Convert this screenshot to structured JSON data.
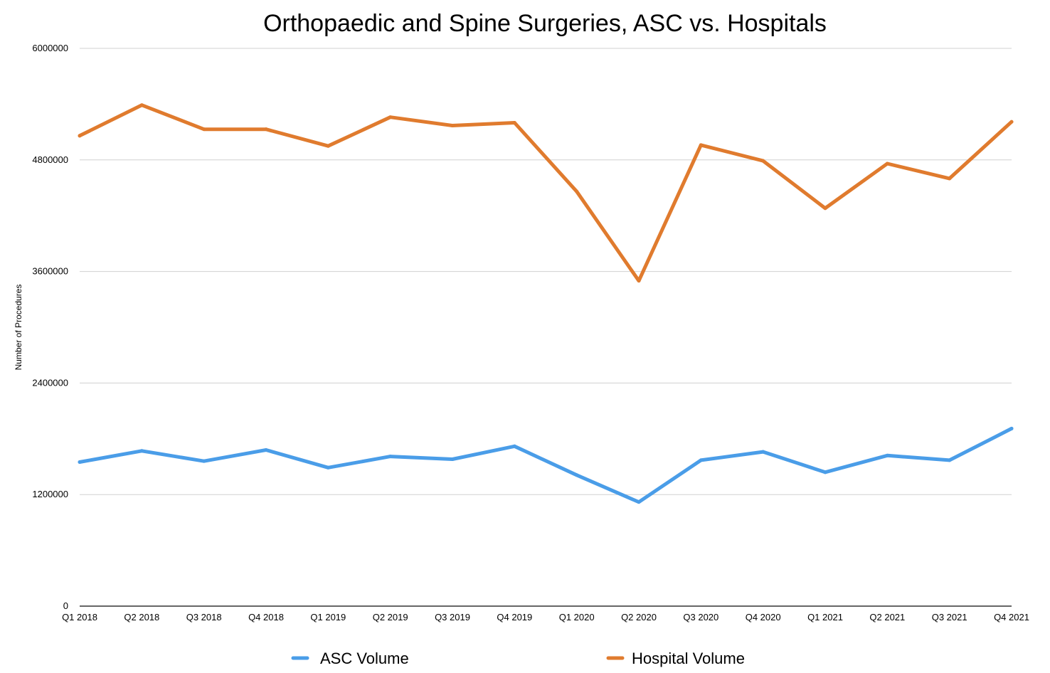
{
  "chart_data": {
    "type": "line",
    "title": "Orthopaedic and Spine Surgeries,  ASC vs. Hospitals",
    "xlabel": "",
    "ylabel": "Number of Procedures",
    "ylim": [
      0,
      6000000
    ],
    "yticks": [
      0,
      1200000,
      2400000,
      3600000,
      4800000,
      6000000
    ],
    "ytick_labels": [
      "0",
      "1200000",
      "2400000",
      "3600000",
      "4800000",
      "6000000"
    ],
    "grid": true,
    "legend_position": "bottom",
    "categories": [
      "Q1 2018",
      "Q2 2018",
      "Q3 2018",
      "Q4 2018",
      "Q1 2019",
      "Q2 2019",
      "Q3 2019",
      "Q4 2019",
      "Q1 2020",
      "Q2 2020",
      "Q3 2020",
      "Q4 2020",
      "Q1 2021",
      "Q2 2021",
      "Q3 2021",
      "Q4 2021"
    ],
    "series": [
      {
        "name": "ASC Volume",
        "color": "#4a9de8",
        "values": [
          1550000,
          1670000,
          1560000,
          1680000,
          1490000,
          1610000,
          1580000,
          1720000,
          1410000,
          1120000,
          1570000,
          1660000,
          1440000,
          1620000,
          1570000,
          1910000
        ]
      },
      {
        "name": "Hospital Volume",
        "color": "#e07b2e",
        "values": [
          5060000,
          5390000,
          5130000,
          5130000,
          4950000,
          5260000,
          5170000,
          5200000,
          4460000,
          3500000,
          4960000,
          4790000,
          4280000,
          4760000,
          4600000,
          5210000
        ]
      }
    ]
  }
}
